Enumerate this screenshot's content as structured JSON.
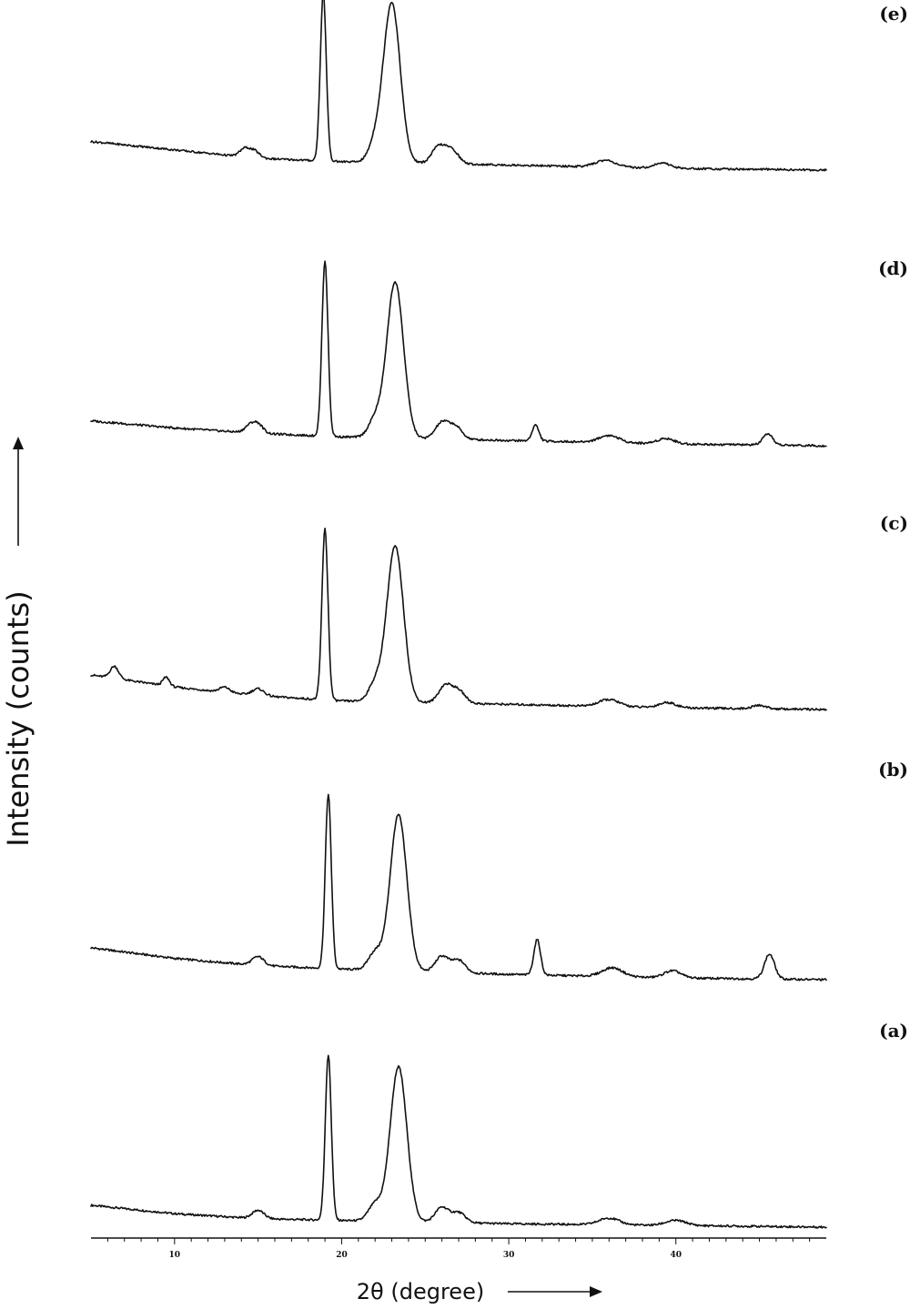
{
  "chart_data": {
    "type": "line",
    "title": "",
    "xlabel": "2θ (degree)",
    "ylabel": "Intensity (counts)",
    "xlim": [
      5,
      49
    ],
    "x_ticks": [
      10,
      20,
      30,
      40
    ],
    "y_ticks": [],
    "grid": false,
    "legend": "none",
    "stacked_offsets": true,
    "series": [
      {
        "name": "(a)",
        "baseline": [
          [
            5,
            0.13
          ],
          [
            10,
            0.08
          ],
          [
            15,
            0.05
          ],
          [
            20,
            0.04
          ],
          [
            30,
            0.02
          ],
          [
            40,
            0.01
          ],
          [
            49,
            0.0
          ]
        ],
        "peaks": [
          [
            15.0,
            0.05,
            0.35
          ],
          [
            19.2,
            0.98,
            0.18
          ],
          [
            22.0,
            0.1,
            0.4
          ],
          [
            23.4,
            0.92,
            0.5
          ],
          [
            26.0,
            0.09,
            0.4
          ],
          [
            27.0,
            0.06,
            0.4
          ],
          [
            36.0,
            0.04,
            0.6
          ],
          [
            40.0,
            0.03,
            0.6
          ]
        ]
      },
      {
        "name": "(b)",
        "baseline": [
          [
            5,
            0.18
          ],
          [
            10,
            0.12
          ],
          [
            15,
            0.08
          ],
          [
            20,
            0.06
          ],
          [
            30,
            0.03
          ],
          [
            40,
            0.01
          ],
          [
            49,
            0.0
          ]
        ],
        "peaks": [
          [
            15.0,
            0.05,
            0.35
          ],
          [
            19.2,
            0.98,
            0.18
          ],
          [
            22.0,
            0.1,
            0.4
          ],
          [
            23.4,
            0.88,
            0.5
          ],
          [
            26.0,
            0.09,
            0.4
          ],
          [
            27.0,
            0.07,
            0.4
          ],
          [
            31.7,
            0.2,
            0.2
          ],
          [
            36.2,
            0.05,
            0.6
          ],
          [
            39.8,
            0.04,
            0.5
          ],
          [
            45.6,
            0.14,
            0.3
          ]
        ]
      },
      {
        "name": "(c)",
        "baseline": [
          [
            5,
            0.2
          ],
          [
            10,
            0.13
          ],
          [
            15,
            0.08
          ],
          [
            20,
            0.05
          ],
          [
            30,
            0.03
          ],
          [
            40,
            0.01
          ],
          [
            49,
            0.0
          ]
        ],
        "peaks": [
          [
            6.4,
            0.07,
            0.25
          ],
          [
            9.5,
            0.05,
            0.2
          ],
          [
            13.0,
            0.03,
            0.3
          ],
          [
            15.0,
            0.04,
            0.35
          ],
          [
            19.0,
            0.99,
            0.18
          ],
          [
            22.0,
            0.1,
            0.4
          ],
          [
            23.2,
            0.9,
            0.5
          ],
          [
            26.2,
            0.1,
            0.4
          ],
          [
            27.0,
            0.07,
            0.4
          ],
          [
            36.0,
            0.04,
            0.6
          ],
          [
            39.5,
            0.03,
            0.5
          ],
          [
            45.0,
            0.02,
            0.4
          ]
        ]
      },
      {
        "name": "(d)",
        "baseline": [
          [
            5,
            0.14
          ],
          [
            10,
            0.1
          ],
          [
            15,
            0.07
          ],
          [
            20,
            0.05
          ],
          [
            30,
            0.03
          ],
          [
            40,
            0.01
          ],
          [
            49,
            0.0
          ]
        ],
        "peaks": [
          [
            14.5,
            0.04,
            0.3
          ],
          [
            15.0,
            0.05,
            0.3
          ],
          [
            19.0,
            0.99,
            0.18
          ],
          [
            22.0,
            0.1,
            0.4
          ],
          [
            23.2,
            0.88,
            0.5
          ],
          [
            26.0,
            0.09,
            0.4
          ],
          [
            26.8,
            0.07,
            0.4
          ],
          [
            31.6,
            0.09,
            0.2
          ],
          [
            36.0,
            0.04,
            0.6
          ],
          [
            39.4,
            0.03,
            0.5
          ],
          [
            45.5,
            0.06,
            0.3
          ]
        ]
      },
      {
        "name": "(e)",
        "baseline": [
          [
            5,
            0.17
          ],
          [
            10,
            0.12
          ],
          [
            15,
            0.07
          ],
          [
            20,
            0.05
          ],
          [
            30,
            0.03
          ],
          [
            40,
            0.01
          ],
          [
            49,
            0.0
          ]
        ],
        "peaks": [
          [
            14.2,
            0.05,
            0.3
          ],
          [
            14.8,
            0.04,
            0.3
          ],
          [
            18.9,
            0.99,
            0.18
          ],
          [
            22.0,
            0.1,
            0.4
          ],
          [
            23.0,
            0.95,
            0.5
          ],
          [
            25.8,
            0.1,
            0.4
          ],
          [
            26.6,
            0.08,
            0.4
          ],
          [
            35.8,
            0.04,
            0.6
          ],
          [
            39.2,
            0.03,
            0.5
          ]
        ]
      }
    ],
    "panel_labels": [
      "(a)",
      "(b)",
      "(c)",
      "(d)",
      "(e)"
    ]
  }
}
